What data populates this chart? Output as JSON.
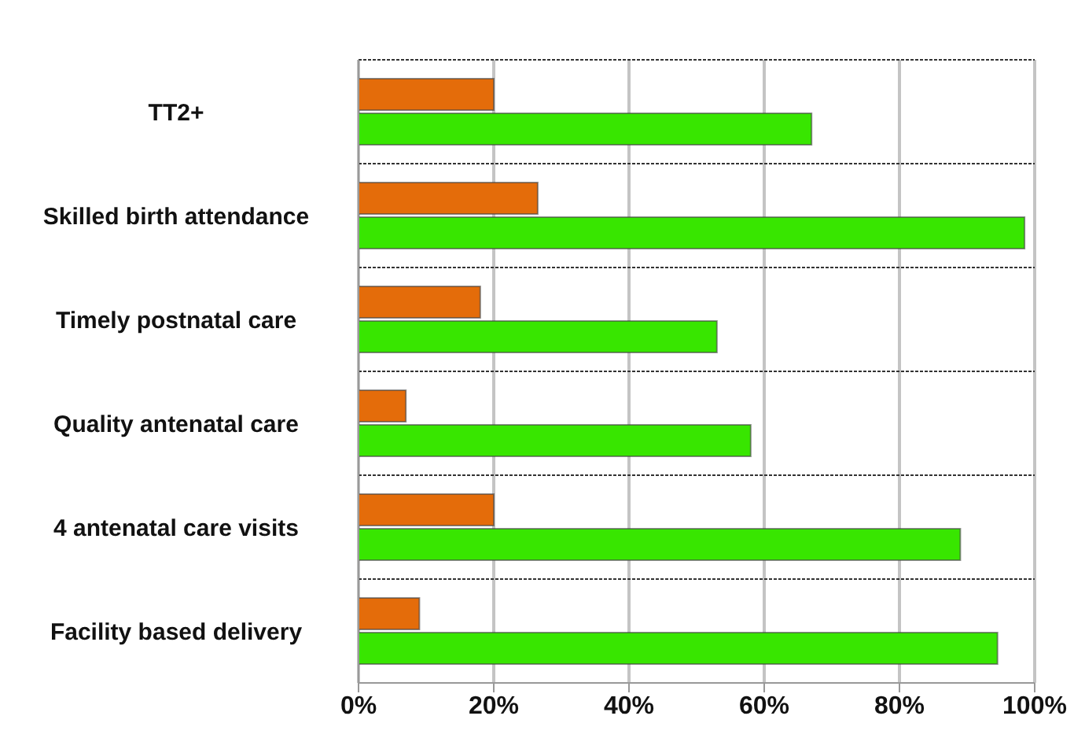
{
  "chart_data": {
    "type": "bar",
    "orientation": "horizontal",
    "categories": [
      "TT2+",
      "Skilled birth attendance",
      "Timely postnatal care",
      "Quality antenatal care",
      "4 antenatal care visits",
      "Facility based delivery"
    ],
    "series": [
      {
        "color": "#e46c0a",
        "values": [
          20,
          26.5,
          18,
          7,
          20,
          9
        ]
      },
      {
        "color": "#38e600",
        "values": [
          67,
          98.5,
          53,
          58,
          89,
          94.5
        ]
      }
    ],
    "xlim": [
      0,
      100
    ],
    "xticks": [
      {
        "value": 0,
        "label": "0%"
      },
      {
        "value": 20,
        "label": "20%"
      },
      {
        "value": 40,
        "label": "40%"
      },
      {
        "value": 60,
        "label": "60%"
      },
      {
        "value": 80,
        "label": "80%"
      },
      {
        "value": 100,
        "label": "100%"
      }
    ],
    "grid": true
  }
}
